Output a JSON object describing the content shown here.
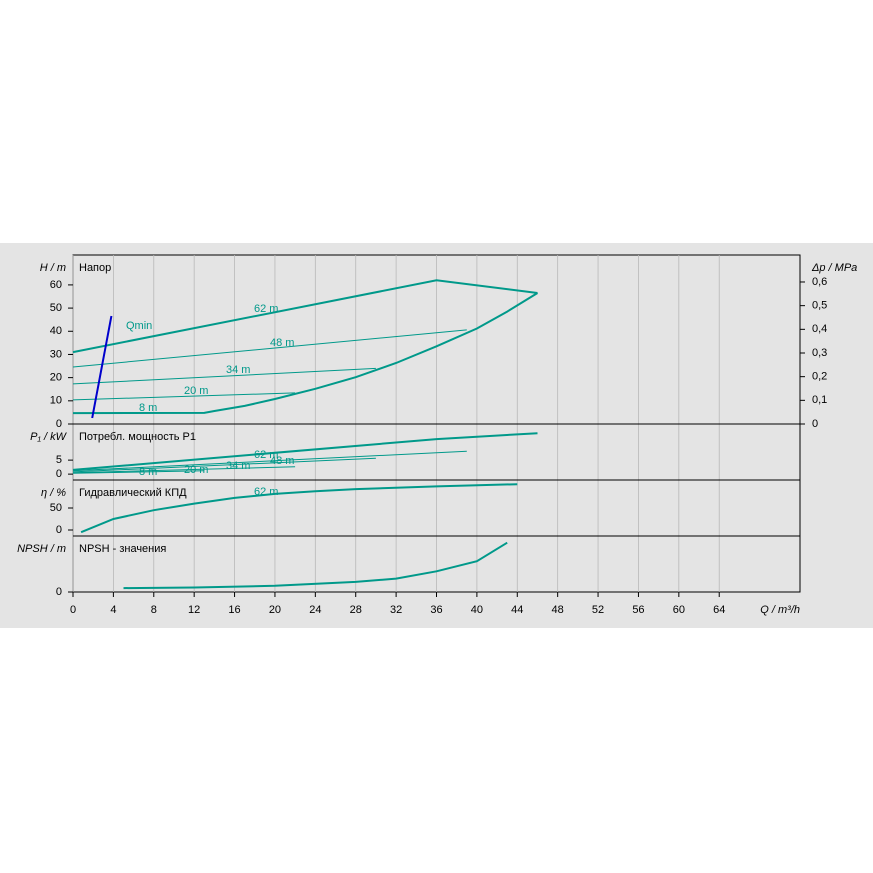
{
  "chart_data": [
    {
      "type": "line",
      "title": "Напор",
      "ylabel": "H / m",
      "y2label": "Δp / MPa",
      "ylim": [
        0,
        72.9
      ],
      "yticks": [
        0,
        10,
        20,
        30,
        40,
        50,
        60
      ],
      "y2lim": [
        0,
        0.714
      ],
      "y2ticks": [
        0,
        {
          "value": 0.1,
          "label": "0,1"
        },
        {
          "value": 0.2,
          "label": "0,2"
        },
        {
          "value": 0.3,
          "label": "0,3"
        },
        {
          "value": 0.4,
          "label": "0,4"
        },
        {
          "value": 0.5,
          "label": "0,5"
        },
        {
          "value": 0.6,
          "label": "0,6"
        }
      ],
      "series": [
        {
          "name": "62 m",
          "color": "#00998a",
          "line_width": 2,
          "x": [
            0,
            36,
            46
          ],
          "values": [
            31,
            62,
            56.5
          ]
        },
        {
          "name": "48 m",
          "color": "#00998a",
          "line_width": 1,
          "x": [
            0,
            39
          ],
          "values": [
            24.6,
            40.6
          ]
        },
        {
          "name": "34 m",
          "color": "#00998a",
          "line_width": 1,
          "x": [
            0,
            30
          ],
          "values": [
            17.3,
            24
          ]
        },
        {
          "name": "20 m",
          "color": "#00998a",
          "line_width": 1,
          "x": [
            0,
            22
          ],
          "values": [
            10.4,
            13.4
          ]
        },
        {
          "name": "8 m",
          "color": "#00998a",
          "line_width": 2,
          "x": [
            0,
            13,
            14,
            17,
            20,
            24,
            28,
            32,
            36,
            40,
            43,
            46
          ],
          "values": [
            4.7,
            4.8,
            5.6,
            7.8,
            10.8,
            15.2,
            20.2,
            26.3,
            33.5,
            41.2,
            48.5,
            56.5
          ]
        },
        {
          "name": "Qmin",
          "color": "#0000cc",
          "line_width": 2,
          "x": [
            1.9,
            3.8
          ],
          "values": [
            2.6,
            46.6
          ]
        }
      ]
    },
    {
      "type": "line",
      "title": "Потребл. мощность P1",
      "ylabel": "P₁ / kW",
      "ylim": [
        -2.1,
        17.9
      ],
      "yticks": [
        0,
        5
      ],
      "series": [
        {
          "name": "62 m",
          "color": "#00998a",
          "line_width": 2,
          "x": [
            0,
            36,
            46
          ],
          "values": [
            1.5,
            12.5,
            14.6
          ]
        },
        {
          "name": "48 m",
          "color": "#00998a",
          "line_width": 1,
          "x": [
            0,
            39
          ],
          "values": [
            1.2,
            8.2
          ]
        },
        {
          "name": "34 m",
          "color": "#00998a",
          "line_width": 1,
          "x": [
            0,
            30
          ],
          "values": [
            0.8,
            5.7
          ]
        },
        {
          "name": "20 m",
          "color": "#00998a",
          "line_width": 1,
          "x": [
            0,
            22
          ],
          "values": [
            0.5,
            2.6
          ]
        },
        {
          "name": "8 m",
          "color": "#00998a",
          "line_width": 1,
          "x": [
            0,
            13
          ],
          "values": [
            0.3,
            1.2
          ]
        }
      ]
    },
    {
      "type": "line",
      "title": "Гидравлический КПД",
      "ylabel": "η / %",
      "ylim": [
        -13.6,
        113.6
      ],
      "yticks": [
        0,
        50
      ],
      "series": [
        {
          "name": "62 m",
          "color": "#00998a",
          "line_width": 2,
          "x": [
            0.8,
            4,
            8,
            12,
            16,
            20,
            24,
            28,
            36,
            44
          ],
          "values": [
            -5,
            25,
            45,
            60,
            73,
            82,
            88,
            93,
            99,
            104
          ]
        }
      ]
    },
    {
      "type": "line",
      "title": "NPSH - значения",
      "ylabel": "NPSH / m",
      "ylim": [
        0,
        10
      ],
      "yticks": [
        0
      ],
      "xlabel": "Q / m³/h",
      "xlim": [
        0,
        72
      ],
      "xticks": [
        0,
        4,
        8,
        12,
        16,
        20,
        24,
        28,
        32,
        36,
        40,
        44,
        48,
        52,
        56,
        60,
        64
      ],
      "series": [
        {
          "color": "#00998a",
          "line_width": 2,
          "x": [
            5,
            12,
            20,
            28,
            32,
            36,
            40,
            43
          ],
          "values": [
            0.7,
            0.8,
            1.1,
            1.8,
            2.4,
            3.7,
            5.5,
            8.8
          ]
        }
      ]
    }
  ]
}
